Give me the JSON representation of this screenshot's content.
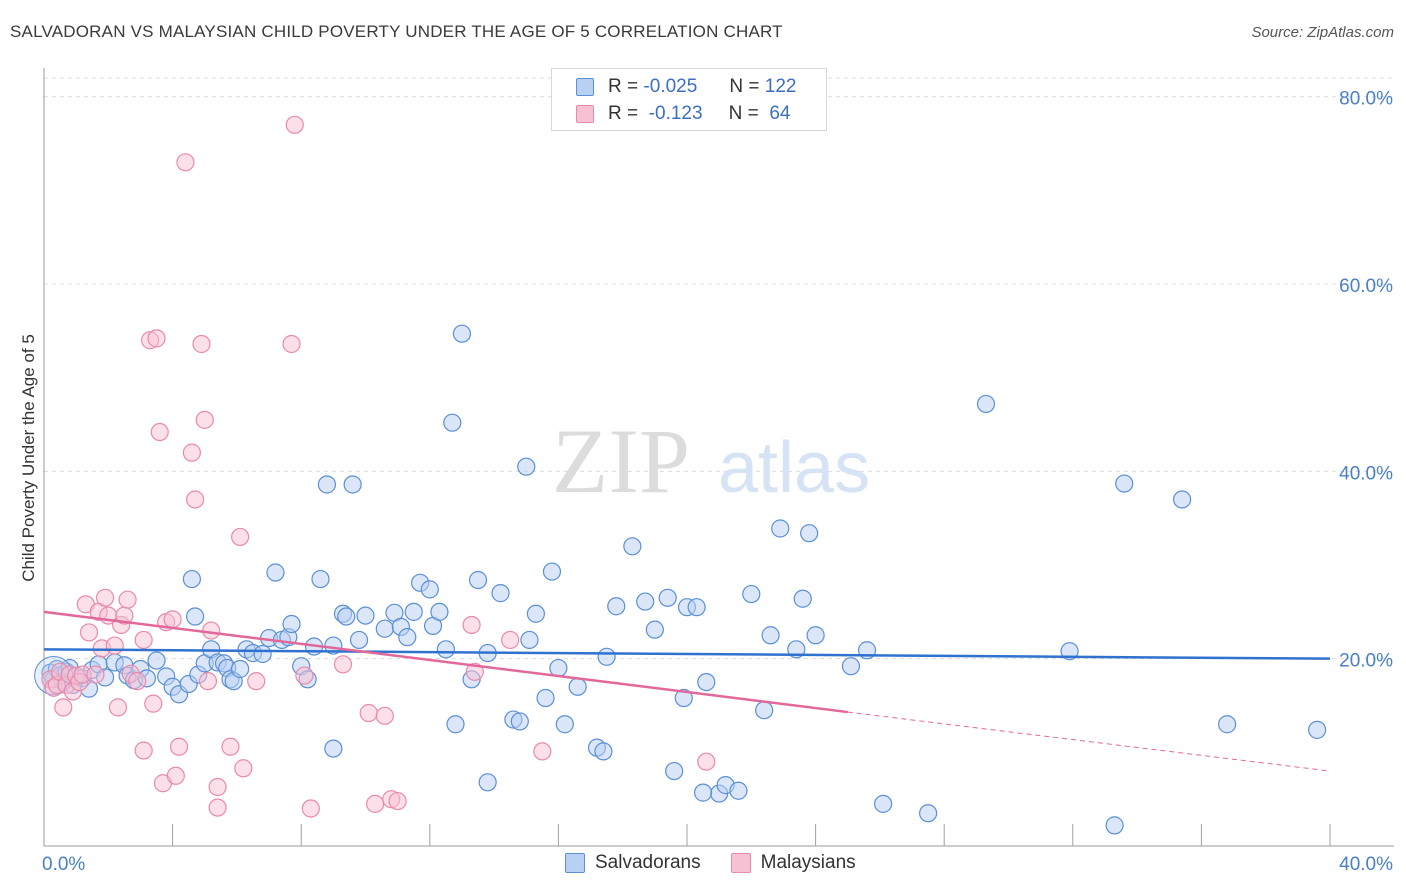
{
  "header": {
    "title": "SALVADORAN VS MALAYSIAN CHILD POVERTY UNDER THE AGE OF 5 CORRELATION CHART",
    "source": "Source: ZipAtlas.com"
  },
  "legend": {
    "r_label": "R =",
    "n_label": "N =",
    "rows": [
      {
        "name": "Salvadorans",
        "r": "-0.025",
        "n": "122"
      },
      {
        "name": "Malaysians",
        "r": "-0.123",
        "n": "64"
      }
    ]
  },
  "watermark": {
    "zip": "ZIP",
    "atlas": "atlas"
  },
  "colors": {
    "salvadoran_fill": "#b7d0f3",
    "salvadoran_stroke": "#5b8fd6",
    "salvadoran_line": "#2f72cf",
    "malaysian_fill": "#f8c1d3",
    "malaysian_stroke": "#e98aac",
    "malaysian_line": "#e2679a",
    "tick": "#4a7fc9",
    "grid": "#dcdcdc"
  },
  "chart_data": {
    "type": "scatter",
    "title": "SALVADORAN VS MALAYSIAN CHILD POVERTY UNDER THE AGE OF 5 CORRELATION CHART",
    "xlabel": "",
    "ylabel": "Child Poverty Under the Age of 5",
    "xlim": [
      0,
      40
    ],
    "ylim": [
      0,
      82
    ],
    "x_tick_labels": [
      {
        "value": 0,
        "label": "0.0%"
      },
      {
        "value": 40,
        "label": "40.0%"
      }
    ],
    "y_tick_labels": [
      {
        "value": 20,
        "label": "20.0%"
      },
      {
        "value": 40,
        "label": "40.0%"
      },
      {
        "value": 60,
        "label": "60.0%"
      },
      {
        "value": 80,
        "label": "80.0%"
      }
    ],
    "series": [
      {
        "name": "Salvadorans",
        "trend": {
          "x0": 0,
          "y0": 21.0,
          "x1": 40,
          "y1": 20.0
        },
        "points": [
          [
            0.2,
            18.5
          ],
          [
            0.3,
            17.8
          ],
          [
            0.4,
            18.9
          ],
          [
            0.5,
            18.2
          ],
          [
            0.6,
            17.5
          ],
          [
            0.7,
            18.6
          ],
          [
            0.8,
            19.0
          ],
          [
            0.9,
            17.2
          ],
          [
            1.0,
            18.1
          ],
          [
            1.2,
            17.9
          ],
          [
            1.4,
            16.8
          ],
          [
            1.5,
            18.8
          ],
          [
            1.7,
            19.4
          ],
          [
            1.9,
            18.0
          ],
          [
            2.2,
            19.6
          ],
          [
            2.5,
            19.3
          ],
          [
            2.6,
            18.2
          ],
          [
            2.8,
            17.7
          ],
          [
            3.0,
            18.9
          ],
          [
            3.2,
            17.9
          ],
          [
            3.5,
            19.8
          ],
          [
            3.8,
            18.1
          ],
          [
            4.0,
            17.0
          ],
          [
            4.2,
            16.2
          ],
          [
            4.5,
            17.3
          ],
          [
            4.6,
            28.5
          ],
          [
            4.7,
            24.5
          ],
          [
            4.8,
            18.3
          ],
          [
            5.0,
            19.5
          ],
          [
            5.2,
            21.0
          ],
          [
            5.4,
            19.6
          ],
          [
            5.6,
            19.5
          ],
          [
            5.7,
            19.0
          ],
          [
            5.8,
            17.8
          ],
          [
            5.9,
            17.6
          ],
          [
            6.1,
            18.9
          ],
          [
            6.3,
            21.0
          ],
          [
            6.5,
            20.6
          ],
          [
            6.8,
            20.5
          ],
          [
            7.0,
            22.2
          ],
          [
            7.2,
            29.2
          ],
          [
            7.4,
            22.0
          ],
          [
            7.6,
            22.3
          ],
          [
            7.7,
            23.7
          ],
          [
            8.0,
            19.2
          ],
          [
            8.2,
            17.8
          ],
          [
            8.4,
            21.3
          ],
          [
            8.6,
            28.5
          ],
          [
            8.8,
            38.6
          ],
          [
            9.0,
            21.4
          ],
          [
            9.3,
            24.8
          ],
          [
            9.4,
            24.5
          ],
          [
            9.6,
            38.6
          ],
          [
            9.8,
            22.0
          ],
          [
            10.0,
            24.6
          ],
          [
            10.6,
            23.2
          ],
          [
            10.9,
            24.9
          ],
          [
            11.1,
            23.4
          ],
          [
            11.3,
            22.3
          ],
          [
            11.5,
            25.0
          ],
          [
            11.7,
            28.1
          ],
          [
            12.0,
            27.4
          ],
          [
            12.1,
            23.5
          ],
          [
            12.3,
            25.0
          ],
          [
            12.5,
            21.0
          ],
          [
            12.7,
            45.2
          ],
          [
            13.0,
            54.7
          ],
          [
            13.3,
            17.8
          ],
          [
            13.5,
            28.4
          ],
          [
            13.8,
            20.6
          ],
          [
            14.2,
            27.0
          ],
          [
            14.6,
            13.5
          ],
          [
            14.8,
            13.3
          ],
          [
            15.0,
            40.5
          ],
          [
            15.1,
            22.0
          ],
          [
            15.3,
            24.8
          ],
          [
            15.6,
            15.8
          ],
          [
            15.8,
            29.3
          ],
          [
            16.0,
            19.0
          ],
          [
            16.2,
            13.0
          ],
          [
            16.6,
            17.0
          ],
          [
            17.2,
            10.5
          ],
          [
            17.4,
            10.1
          ],
          [
            17.5,
            20.2
          ],
          [
            17.8,
            25.6
          ],
          [
            18.3,
            32.0
          ],
          [
            18.7,
            26.1
          ],
          [
            19.0,
            23.1
          ],
          [
            19.4,
            26.5
          ],
          [
            19.9,
            15.8
          ],
          [
            20.0,
            25.5
          ],
          [
            20.3,
            25.5
          ],
          [
            20.6,
            17.5
          ],
          [
            21.0,
            5.6
          ],
          [
            21.2,
            6.5
          ],
          [
            21.6,
            5.9
          ],
          [
            22.0,
            26.9
          ],
          [
            22.4,
            14.5
          ],
          [
            22.6,
            22.5
          ],
          [
            22.9,
            33.9
          ],
          [
            23.4,
            21.0
          ],
          [
            23.6,
            26.4
          ],
          [
            23.8,
            33.4
          ],
          [
            24.0,
            22.5
          ],
          [
            25.1,
            19.2
          ],
          [
            25.6,
            20.9
          ],
          [
            26.1,
            4.5
          ],
          [
            27.5,
            3.5
          ],
          [
            29.3,
            47.2
          ],
          [
            31.9,
            20.8
          ],
          [
            33.3,
            2.2
          ],
          [
            33.6,
            38.7
          ],
          [
            35.4,
            37.0
          ],
          [
            36.8,
            13.0
          ],
          [
            39.6,
            12.4
          ],
          [
            19.6,
            8.0
          ],
          [
            13.8,
            6.8
          ],
          [
            9.0,
            10.4
          ],
          [
            12.8,
            13.0
          ],
          [
            20.5,
            5.7
          ]
        ]
      },
      {
        "name": "Malaysians",
        "trend": {
          "x0": 0,
          "y0": 25.0,
          "x1": 25.0,
          "y1": 14.3,
          "dash_x1": 40,
          "dash_y1": 8.0
        },
        "points": [
          [
            0.2,
            17.8
          ],
          [
            0.3,
            16.9
          ],
          [
            0.4,
            17.2
          ],
          [
            0.5,
            18.6
          ],
          [
            0.6,
            14.8
          ],
          [
            0.7,
            17.2
          ],
          [
            0.8,
            18.3
          ],
          [
            0.9,
            16.5
          ],
          [
            1.0,
            18.2
          ],
          [
            1.1,
            17.5
          ],
          [
            1.2,
            18.3
          ],
          [
            1.3,
            25.8
          ],
          [
            1.4,
            22.8
          ],
          [
            1.6,
            18.3
          ],
          [
            1.7,
            25.0
          ],
          [
            1.8,
            21.1
          ],
          [
            1.9,
            26.5
          ],
          [
            2.0,
            24.6
          ],
          [
            2.2,
            21.4
          ],
          [
            2.3,
            14.8
          ],
          [
            2.4,
            23.6
          ],
          [
            2.5,
            24.6
          ],
          [
            2.6,
            26.3
          ],
          [
            2.7,
            18.4
          ],
          [
            2.9,
            17.6
          ],
          [
            3.1,
            22.0
          ],
          [
            3.1,
            10.2
          ],
          [
            3.3,
            54.0
          ],
          [
            3.4,
            15.2
          ],
          [
            3.5,
            54.2
          ],
          [
            3.6,
            44.2
          ],
          [
            3.7,
            6.7
          ],
          [
            3.8,
            23.9
          ],
          [
            4.0,
            24.2
          ],
          [
            4.1,
            7.5
          ],
          [
            4.2,
            10.6
          ],
          [
            4.4,
            73.0
          ],
          [
            4.6,
            42.0
          ],
          [
            4.7,
            37.0
          ],
          [
            4.9,
            53.6
          ],
          [
            5.0,
            45.5
          ],
          [
            5.1,
            17.6
          ],
          [
            5.2,
            23.0
          ],
          [
            5.4,
            6.3
          ],
          [
            5.4,
            4.1
          ],
          [
            5.8,
            10.6
          ],
          [
            6.1,
            33.0
          ],
          [
            6.2,
            8.3
          ],
          [
            6.6,
            17.6
          ],
          [
            7.7,
            53.6
          ],
          [
            7.8,
            77.0
          ],
          [
            8.1,
            18.2
          ],
          [
            8.3,
            4.0
          ],
          [
            9.3,
            19.4
          ],
          [
            10.1,
            14.2
          ],
          [
            10.3,
            4.5
          ],
          [
            10.6,
            13.9
          ],
          [
            10.8,
            5.0
          ],
          [
            11.0,
            4.8
          ],
          [
            13.3,
            23.6
          ],
          [
            13.4,
            18.6
          ],
          [
            14.5,
            22.0
          ],
          [
            15.5,
            10.1
          ],
          [
            20.6,
            9.0
          ]
        ]
      }
    ]
  }
}
